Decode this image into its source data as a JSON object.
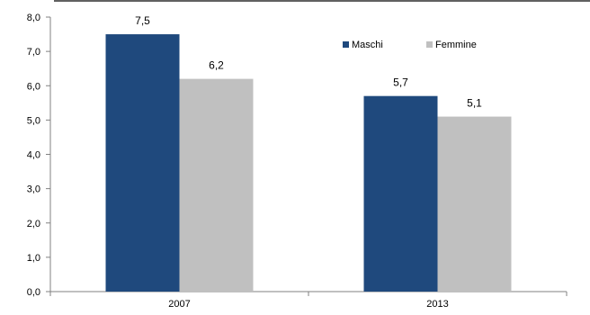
{
  "chart_data": {
    "type": "bar",
    "categories": [
      "2007",
      "2013"
    ],
    "series": [
      {
        "name": "Maschi",
        "values": [
          7.5,
          5.7
        ],
        "value_labels": [
          "7,5",
          "5,7"
        ],
        "color": "#1F497D"
      },
      {
        "name": "Femmine",
        "values": [
          6.2,
          5.1
        ],
        "value_labels": [
          "6,2",
          "5,1"
        ],
        "color": "#C0C0C0"
      }
    ],
    "ylim": [
      0,
      8
    ],
    "yticks": [
      0,
      1,
      2,
      3,
      4,
      5,
      6,
      7,
      8
    ],
    "ytick_labels": [
      "0,0",
      "1,0",
      "2,0",
      "3,0",
      "4,0",
      "5,0",
      "6,0",
      "7,0",
      "8,0"
    ],
    "grid": false,
    "legend_position": "top-right",
    "title": "",
    "xlabel": "",
    "ylabel": ""
  }
}
